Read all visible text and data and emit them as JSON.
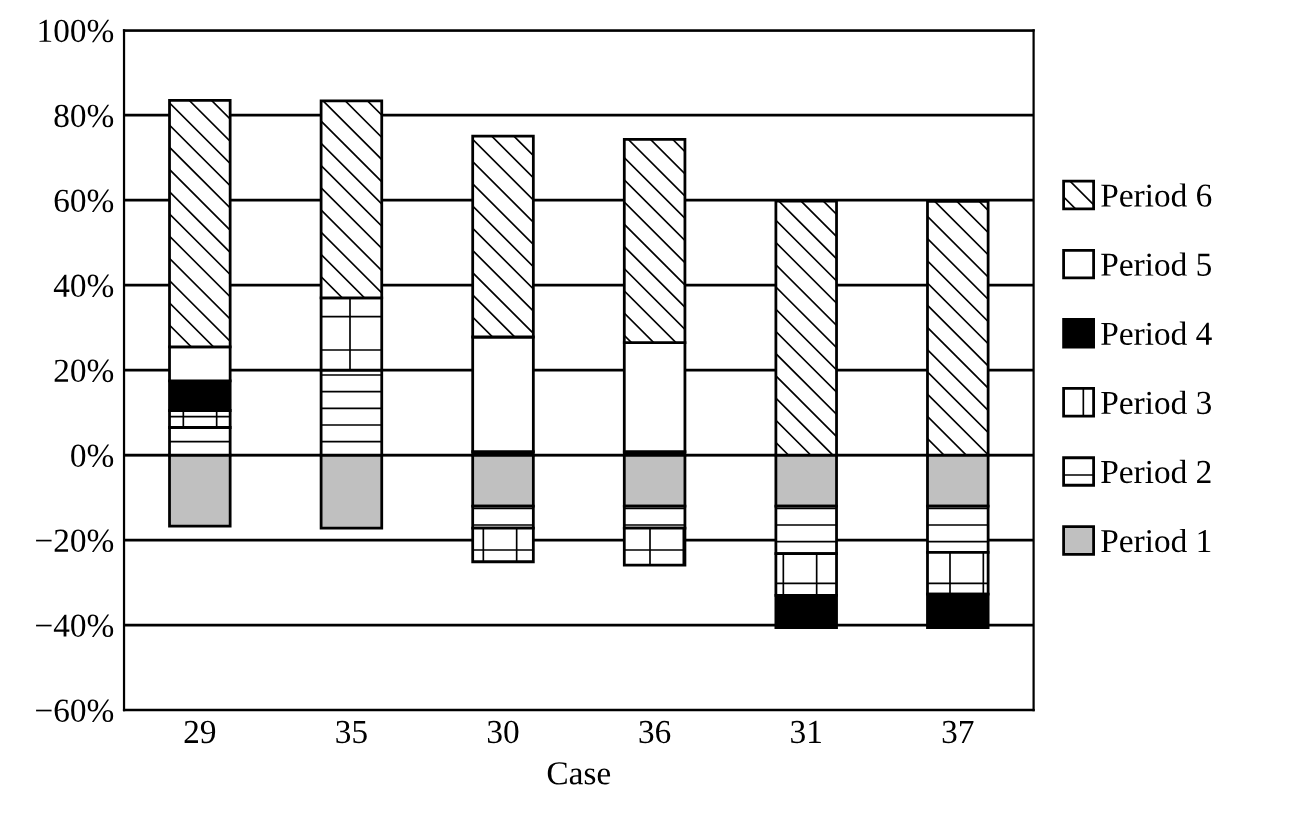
{
  "chart_data": {
    "type": "bar",
    "stacked": true,
    "xlabel": "Case",
    "categories": [
      "29",
      "35",
      "30",
      "36",
      "31",
      "37"
    ],
    "series": [
      {
        "name": "Period 1",
        "color": "#c0c0c0",
        "values": [
          -16.7,
          -17.2,
          -12,
          -12,
          -12,
          -12
        ]
      },
      {
        "name": "Period 2",
        "color": "#ffffff",
        "values": [
          6.5,
          20,
          -5.2,
          -5.2,
          -11.2,
          -10.9
        ]
      },
      {
        "name": "Period 3",
        "color": "#ffffff",
        "values": [
          4,
          17,
          -7.9,
          -8.7,
          -9.8,
          -9.8
        ]
      },
      {
        "name": "Period 4",
        "color": "#000000",
        "values": [
          7,
          null,
          0.8,
          0.8,
          -7.6,
          -7.9
        ]
      },
      {
        "name": "Period 5",
        "color": "#ffffff",
        "values": [
          8,
          null,
          27,
          25.7,
          null,
          null
        ]
      },
      {
        "name": "Period 6",
        "color": "#ffffff",
        "values": [
          58,
          46.4,
          47.3,
          47.8,
          59.8,
          59.7
        ]
      }
    ],
    "ylim": [
      -60,
      100
    ],
    "yticks": [
      {
        "value": -60,
        "label": "−60%"
      },
      {
        "value": -40,
        "label": "−40%"
      },
      {
        "value": -20,
        "label": "−20%"
      },
      {
        "value": 0,
        "label": "0%"
      },
      {
        "value": 20,
        "label": "20%"
      },
      {
        "value": 40,
        "label": "40%"
      },
      {
        "value": 60,
        "label": "60%"
      },
      {
        "value": 80,
        "label": "80%"
      },
      {
        "value": 100,
        "label": "100%"
      }
    ],
    "grid": "y",
    "legend": "right"
  }
}
